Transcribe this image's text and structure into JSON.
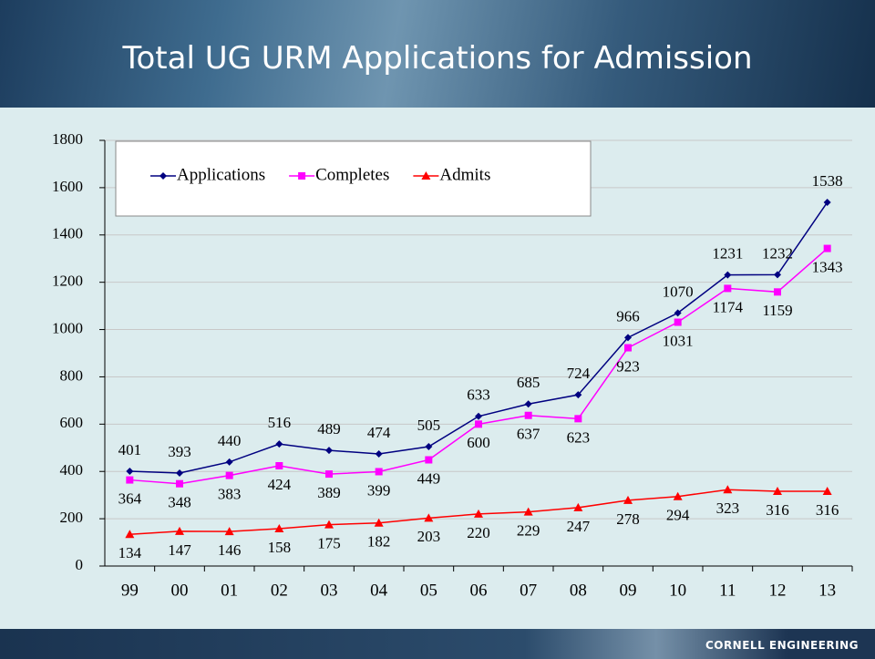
{
  "chart_data": {
    "type": "line",
    "title": "Total UG URM Applications for Admission",
    "categories": [
      "99",
      "00",
      "01",
      "02",
      "03",
      "04",
      "05",
      "06",
      "07",
      "08",
      "09",
      "10",
      "11",
      "12",
      "13"
    ],
    "series": [
      {
        "name": "Applications",
        "color": "#000080",
        "marker": "diamond",
        "label_position": "above",
        "values": [
          401,
          393,
          440,
          516,
          489,
          474,
          505,
          633,
          685,
          724,
          966,
          1070,
          1231,
          1232,
          1538
        ]
      },
      {
        "name": "Completes",
        "color": "#ff00ff",
        "marker": "square",
        "label_position": "below",
        "values": [
          364,
          348,
          383,
          424,
          389,
          399,
          449,
          600,
          637,
          623,
          923,
          1031,
          1174,
          1159,
          1343
        ]
      },
      {
        "name": "Admits",
        "color": "#ff0000",
        "marker": "triangle",
        "label_position": "below",
        "values": [
          134,
          147,
          146,
          158,
          175,
          182,
          203,
          220,
          229,
          247,
          278,
          294,
          323,
          316,
          316
        ]
      }
    ],
    "ylim": [
      0,
      1800
    ],
    "yticks": [
      0,
      200,
      400,
      600,
      800,
      1000,
      1200,
      1400,
      1600,
      1800
    ],
    "grid": true,
    "legend": "top-left"
  },
  "footer": "CORNELL ENGINEERING"
}
